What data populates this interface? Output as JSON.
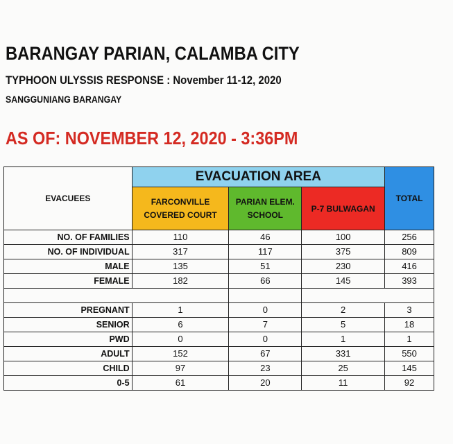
{
  "header": {
    "title": "BARANGAY PARIAN, CALAMBA CITY",
    "subtitle": "TYPHOON ULYSSIS RESPONSE : November 11-12, 2020",
    "office": "SANGGUNIANG BARANGAY",
    "as_of": "AS OF: NOVEMBER 12, 2020 - 3:36PM"
  },
  "table": {
    "evacuees_label": "EVACUEES",
    "group_label": "EVACUATION AREA",
    "columns": [
      {
        "label_line1": "FARCONVILLE",
        "label_line2": "COVERED COURT",
        "color": "#f5b81c"
      },
      {
        "label_line1": "PARIAN ELEM.",
        "label_line2": "SCHOOL",
        "color": "#5fb92d"
      },
      {
        "label_line1": "P-7 BULWAGAN",
        "label_line2": "",
        "color": "#ec2a24"
      }
    ],
    "total_label": "TOTAL",
    "group_color": "#8fd2ee",
    "total_color": "#2f8fe3",
    "rows_a": [
      {
        "label": "NO. OF FAMILIES",
        "values": [
          "110",
          "46",
          "100",
          "256"
        ]
      },
      {
        "label": "NO. OF INDIVIDUAL",
        "values": [
          "317",
          "117",
          "375",
          "809"
        ]
      },
      {
        "label": "MALE",
        "values": [
          "135",
          "51",
          "230",
          "416"
        ]
      },
      {
        "label": "FEMALE",
        "values": [
          "182",
          "66",
          "145",
          "393"
        ]
      }
    ],
    "rows_b": [
      {
        "label": "PREGNANT",
        "values": [
          "1",
          "0",
          "2",
          "3"
        ]
      },
      {
        "label": "SENIOR",
        "values": [
          "6",
          "7",
          "5",
          "18"
        ]
      },
      {
        "label": "PWD",
        "values": [
          "0",
          "0",
          "1",
          "1"
        ]
      },
      {
        "label": "ADULT",
        "values": [
          "152",
          "67",
          "331",
          "550"
        ]
      },
      {
        "label": "CHILD",
        "values": [
          "97",
          "23",
          "25",
          "145"
        ]
      },
      {
        "label": "0-5",
        "values": [
          "61",
          "20",
          "11",
          "92"
        ]
      }
    ]
  }
}
